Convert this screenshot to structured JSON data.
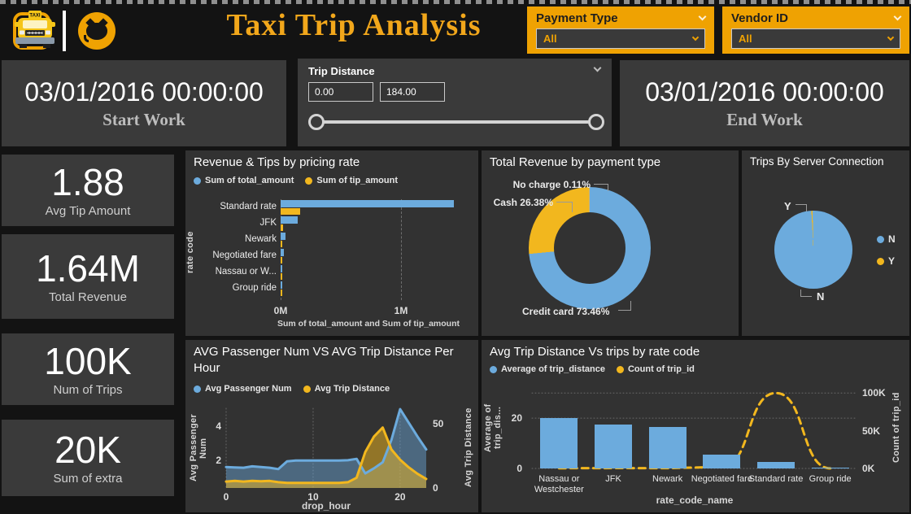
{
  "header": {
    "title": "Taxi Trip Analysis",
    "icons": [
      "linkedin-icon",
      "github-icon",
      "taxi-icon"
    ],
    "slicers": [
      {
        "label": "Payment Type",
        "value": "All"
      },
      {
        "label": "Vendor ID",
        "value": "All"
      }
    ]
  },
  "filters": {
    "start_work": {
      "value": "03/01/2016 00:00:00",
      "label": "Start Work"
    },
    "end_work": {
      "value": "03/01/2016 00:00:00",
      "label": "End Work"
    },
    "trip_distance": {
      "label": "Trip Distance",
      "min_value": "0.00",
      "max_value": "184.00"
    }
  },
  "kpis": [
    {
      "value": "1.88",
      "label": "Avg Tip Amount"
    },
    {
      "value": "1.64M",
      "label": "Total Revenue"
    },
    {
      "value": "100K",
      "label": "Num of Trips"
    },
    {
      "value": "20K",
      "label": "Sum of extra"
    }
  ],
  "colors": {
    "blue": "#6CABDD",
    "yellow": "#F2B71E",
    "gold": "#EFA202",
    "gray": "#B0B0B0"
  },
  "chart_data": [
    {
      "type": "bar",
      "orientation": "horizontal",
      "title": "Revenue & Tips by pricing rate",
      "categories": [
        "Standard rate",
        "JFK",
        "Newark",
        "Negotiated fare",
        "Nassau or W...",
        "Group ride"
      ],
      "series": [
        {
          "name": "Sum of total_amount",
          "color": "blue",
          "values_M": [
            1.44,
            0.14,
            0.04,
            0.03,
            0.012,
            0.006
          ]
        },
        {
          "name": "Sum of tip_amount",
          "color": "yellow",
          "values_M": [
            0.16,
            0.018,
            0.009,
            0.007,
            0.004,
            0.001
          ]
        }
      ],
      "x_axis": {
        "title": "Sum of total_amount and Sum of tip_amount",
        "ticks": [
          "0M",
          "1M"
        ],
        "tick_values": [
          0,
          1
        ],
        "max": 1.5
      },
      "y_axis_title": "rate code"
    },
    {
      "type": "pie",
      "donut": true,
      "title": "Total Revenue by payment type",
      "slices": [
        {
          "label": "Credit card",
          "pct": 73.46,
          "color": "blue"
        },
        {
          "label": "Cash",
          "pct": 26.38,
          "color": "yellow"
        },
        {
          "label": "No charge",
          "pct": 0.11,
          "color": "gray"
        }
      ],
      "callouts": [
        "No charge 0.11%",
        "Cash 26.38%",
        "Credit card 73.46%"
      ]
    },
    {
      "type": "pie",
      "donut": false,
      "title": "Trips By Server Connection",
      "slices": [
        {
          "label": "N",
          "pct": 99.5,
          "color": "blue"
        },
        {
          "label": "Y",
          "pct": 0.5,
          "color": "yellow"
        }
      ],
      "callouts": [
        "Y",
        "N"
      ],
      "legend": [
        {
          "label": "N",
          "color": "blue"
        },
        {
          "label": "Y",
          "color": "yellow"
        }
      ]
    },
    {
      "type": "area",
      "title": "AVG Passenger Num VS AVG Trip Distance Per Hour",
      "x": [
        0,
        1,
        2,
        3,
        4,
        5,
        6,
        7,
        8,
        9,
        10,
        11,
        12,
        13,
        14,
        15,
        16,
        17,
        18,
        19,
        20,
        21,
        22,
        23
      ],
      "series": [
        {
          "name": "Avg Passenger Num",
          "axis": "left",
          "color": "blue",
          "values": [
            1.62,
            1.6,
            1.58,
            1.66,
            1.62,
            1.58,
            1.5,
            1.95,
            2,
            2,
            2,
            2,
            2,
            2,
            2.02,
            2.1,
            1.25,
            1.55,
            1.9,
            3.2,
            5,
            4.2,
            3.4,
            2.65
          ]
        },
        {
          "name": "Avg Trip Distance",
          "axis": "right",
          "color": "yellow",
          "values": [
            5,
            5.5,
            5,
            5.5,
            5.2,
            5.5,
            4.5,
            4,
            4,
            4,
            4,
            4,
            4,
            4,
            4.5,
            8,
            28,
            40,
            47,
            30,
            22,
            16,
            11,
            7
          ]
        }
      ],
      "x_axis": {
        "title": "drop_hour",
        "ticks": [
          0,
          10,
          20
        ]
      },
      "left_axis": {
        "title": "Avg Passenger Num",
        "ticks": [
          2,
          4
        ],
        "range": [
          0.4,
          5.05
        ]
      },
      "right_axis": {
        "title": "Avg Trip Distance",
        "ticks": [
          0,
          50
        ],
        "range": [
          0,
          62
        ]
      }
    },
    {
      "type": "combo",
      "title": "Avg Trip Distance Vs trips by rate code",
      "categories": [
        "Nassau or Westchester",
        "JFK",
        "Newark",
        "Negotiated fare",
        "Standard rate",
        "Group ride"
      ],
      "bars": {
        "name": "Average of trip_distance",
        "color": "blue",
        "values": [
          20,
          17.5,
          16.5,
          5.5,
          2.5,
          0.3
        ]
      },
      "line": {
        "name": "Count of trip_id",
        "color": "yellow",
        "values": [
          300,
          500,
          400,
          2000,
          100000,
          200
        ]
      },
      "x_axis": {
        "title": "rate_code_name"
      },
      "left_axis": {
        "title": "Average of trip_dis...",
        "ticks": [
          0,
          20
        ],
        "max": 33
      },
      "right_axis": {
        "title": "Count of trip_id",
        "ticks": [
          "0K",
          "50K",
          "100K"
        ],
        "tick_values": [
          0,
          50000,
          100000
        ],
        "max": 110000
      }
    }
  ]
}
